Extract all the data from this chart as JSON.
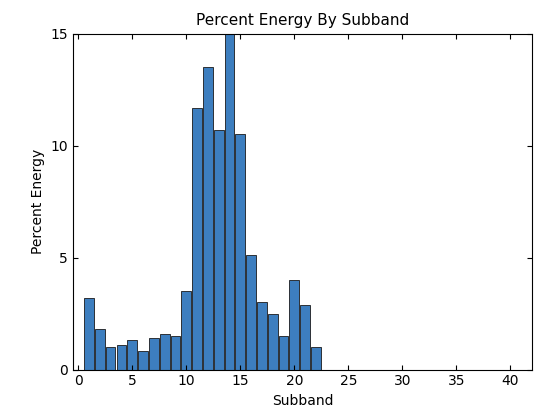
{
  "title": "Percent Energy By Subband",
  "xlabel": "Subband",
  "ylabel": "Percent Energy",
  "bar_color": "#3d7ebf",
  "edge_color": "#1a1a1a",
  "xlim": [
    -0.5,
    42
  ],
  "ylim": [
    0,
    15
  ],
  "xticks": [
    0,
    5,
    10,
    15,
    20,
    25,
    30,
    35,
    40
  ],
  "yticks": [
    0,
    5,
    10,
    15
  ],
  "subbands": [
    1,
    2,
    3,
    4,
    5,
    6,
    7,
    8,
    9,
    10,
    11,
    12,
    13,
    14,
    15,
    16,
    17,
    18,
    19,
    20,
    21,
    22
  ],
  "values": [
    3.2,
    1.8,
    1.0,
    1.1,
    1.3,
    0.85,
    1.4,
    1.6,
    1.5,
    3.5,
    11.7,
    13.5,
    10.7,
    15.0,
    10.5,
    5.1,
    3.0,
    2.5,
    1.5,
    4.0,
    2.9,
    1.0
  ],
  "title_fontsize": 11,
  "label_fontsize": 10,
  "tick_fontsize": 10
}
